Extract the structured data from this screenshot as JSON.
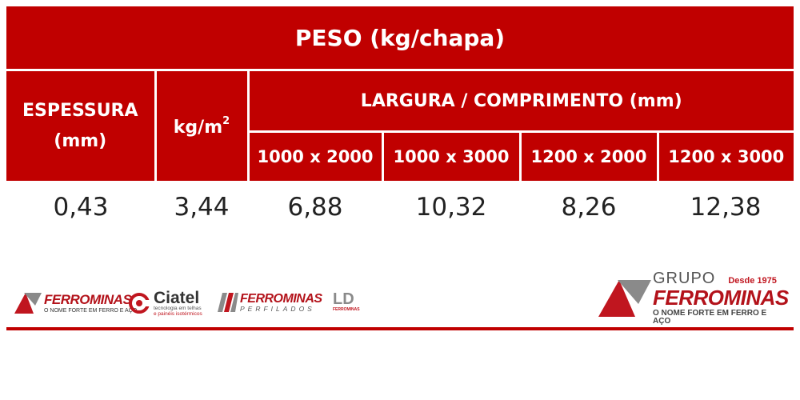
{
  "table": {
    "title": "PESO (kg/chapa)",
    "header": {
      "espessura_line1": "ESPESSURA",
      "espessura_line2": "(mm)",
      "kg_base": "kg/m",
      "kg_sup": "2",
      "largura": "LARGURA / COMPRIMENTO (mm)",
      "dimensions": [
        "1000 x 2000",
        "1000 x 3000",
        "1200 x 2000",
        "1200 x 3000"
      ]
    },
    "row": {
      "espessura": "0,43",
      "kg_m2": "3,44",
      "values": [
        "6,88",
        "10,32",
        "8,26",
        "12,38"
      ]
    }
  },
  "logos": {
    "ferrominas": {
      "name": "FERROMINAS",
      "tagline": "O NOME FORTE EM FERRO E AÇO"
    },
    "ciatel": {
      "name": "Ciatel",
      "tagline_line1": "tecnologia em telhas",
      "tagline_line2": "e painéis isotérmicos"
    },
    "perfilados": {
      "name": "FERROMINAS",
      "sub": "PERFILADOS"
    },
    "ld": {
      "name": "LD",
      "sub": "FERROMINAS"
    },
    "grupo": {
      "grupo": "GRUPO",
      "desde": "Desde 1975",
      "name": "FERROMINAS",
      "tagline": "O NOME FORTE EM FERRO E AÇO"
    }
  },
  "colors": {
    "brand_red": "#c00000",
    "logo_red": "#b3121a",
    "logo_gray": "#8a8a8a"
  }
}
